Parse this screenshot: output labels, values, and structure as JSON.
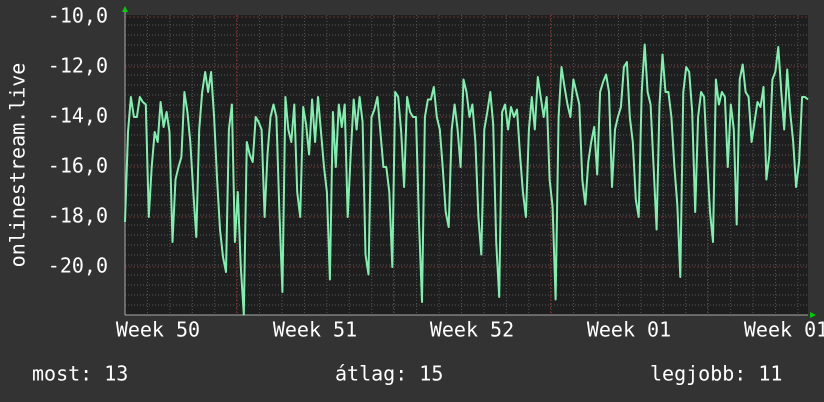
{
  "chart_data": {
    "type": "line",
    "ylabel": "onlinestream.live",
    "ylim": [
      -21.92,
      -9.92
    ],
    "yticks": [
      {
        "value": -10,
        "label": "-10,0"
      },
      {
        "value": -12,
        "label": "-12,0"
      },
      {
        "value": -14,
        "label": "-14,0"
      },
      {
        "value": -16,
        "label": "-16,0"
      },
      {
        "value": -18,
        "label": "-18,0"
      },
      {
        "value": -20,
        "label": "-20,0"
      }
    ],
    "xlim": [
      0,
      30.45
    ],
    "xticks": [
      {
        "value": 1.47,
        "label": "Week 50"
      },
      {
        "value": 8.47,
        "label": "Week 51"
      },
      {
        "value": 15.47,
        "label": "Week 52"
      },
      {
        "value": 22.47,
        "label": "Week 01"
      },
      {
        "value": 29.47,
        "label": "Week 01"
      }
    ],
    "grid": true,
    "color": "#80f0b0",
    "values": [
      -18.2,
      -14.6,
      -13.2,
      -14,
      -14,
      -13.2,
      -13.4,
      -13.5,
      -18,
      -16,
      -14.6,
      -15,
      -13.4,
      -14.4,
      -13.8,
      -14.6,
      -19,
      -16.5,
      -16,
      -15.6,
      -13,
      -13.8,
      -15,
      -17,
      -18.8,
      -14.5,
      -13,
      -12.2,
      -13,
      -12.2,
      -14,
      -16.5,
      -18.5,
      -19.6,
      -20.2,
      -14.5,
      -13.5,
      -19,
      -17,
      -20,
      -21.9,
      -15,
      -15.5,
      -15.8,
      -14,
      -14.2,
      -14.5,
      -18,
      -15.5,
      -14,
      -13.5,
      -14,
      -17.8,
      -21,
      -13.2,
      -14.5,
      -15,
      -13.5,
      -17,
      -18,
      -13.6,
      -14.3,
      -15.5,
      -13.3,
      -15,
      -13.2,
      -14.6,
      -16,
      -17,
      -20.5,
      -13.8,
      -16,
      -13.5,
      -14.4,
      -13.5,
      -18,
      -15.5,
      -13.3,
      -14.5,
      -13.2,
      -14.2,
      -19.5,
      -20.3,
      -14,
      -13.7,
      -13.2,
      -14.6,
      -16,
      -16,
      -17,
      -20,
      -13,
      -13.2,
      -14.6,
      -16.8,
      -13.2,
      -13.8,
      -14,
      -14,
      -18.2,
      -21.4,
      -14,
      -13.3,
      -13.3,
      -12.8,
      -14,
      -14.5,
      -16,
      -17.8,
      -18.4,
      -14.5,
      -13.5,
      -14.5,
      -16,
      -12.5,
      -13,
      -14,
      -13.5,
      -15,
      -18,
      -19.5,
      -14.5,
      -13.8,
      -13,
      -14.3,
      -19,
      -21.2,
      -13.8,
      -13.5,
      -14.5,
      -13.6,
      -14,
      -13.7,
      -15.5,
      -17,
      -18,
      -14.5,
      -13.2,
      -14.5,
      -12.4,
      -13.2,
      -14,
      -13.2,
      -16.5,
      -17.6,
      -21.3,
      -14,
      -12,
      -12.8,
      -13.5,
      -14,
      -12.5,
      -13,
      -13.5,
      -16.5,
      -17.5,
      -15.8,
      -15,
      -14.4,
      -16.3,
      -13,
      -12.6,
      -12.3,
      -13,
      -16.8,
      -14.5,
      -14,
      -13.6,
      -12,
      -11.8,
      -14,
      -15,
      -17.3,
      -18,
      -13,
      -11.1,
      -13,
      -13.5,
      -16,
      -18.5,
      -13.5,
      -11.5,
      -13,
      -13,
      -14,
      -16,
      -17.5,
      -20.4,
      -13,
      -12,
      -12.2,
      -13.8,
      -17.8,
      -14,
      -13,
      -13.2,
      -15.6,
      -17.8,
      -19,
      -12.5,
      -13.5,
      -13,
      -13.2,
      -16,
      -13.5,
      -14.5,
      -18.3,
      -12.5,
      -11.9,
      -13,
      -13.2,
      -15,
      -14.2,
      -13.4,
      -13.6,
      -12.8,
      -16.5,
      -15.5,
      -12.5,
      -12.2,
      -11.2,
      -13,
      -14.5,
      -12.1,
      -13.8,
      -15,
      -16.8,
      -15.8,
      -13.2,
      -13.2,
      -13.3
    ],
    "stats": [
      "most: 13",
      "átlag: 15",
      "legjobb: 11"
    ]
  }
}
